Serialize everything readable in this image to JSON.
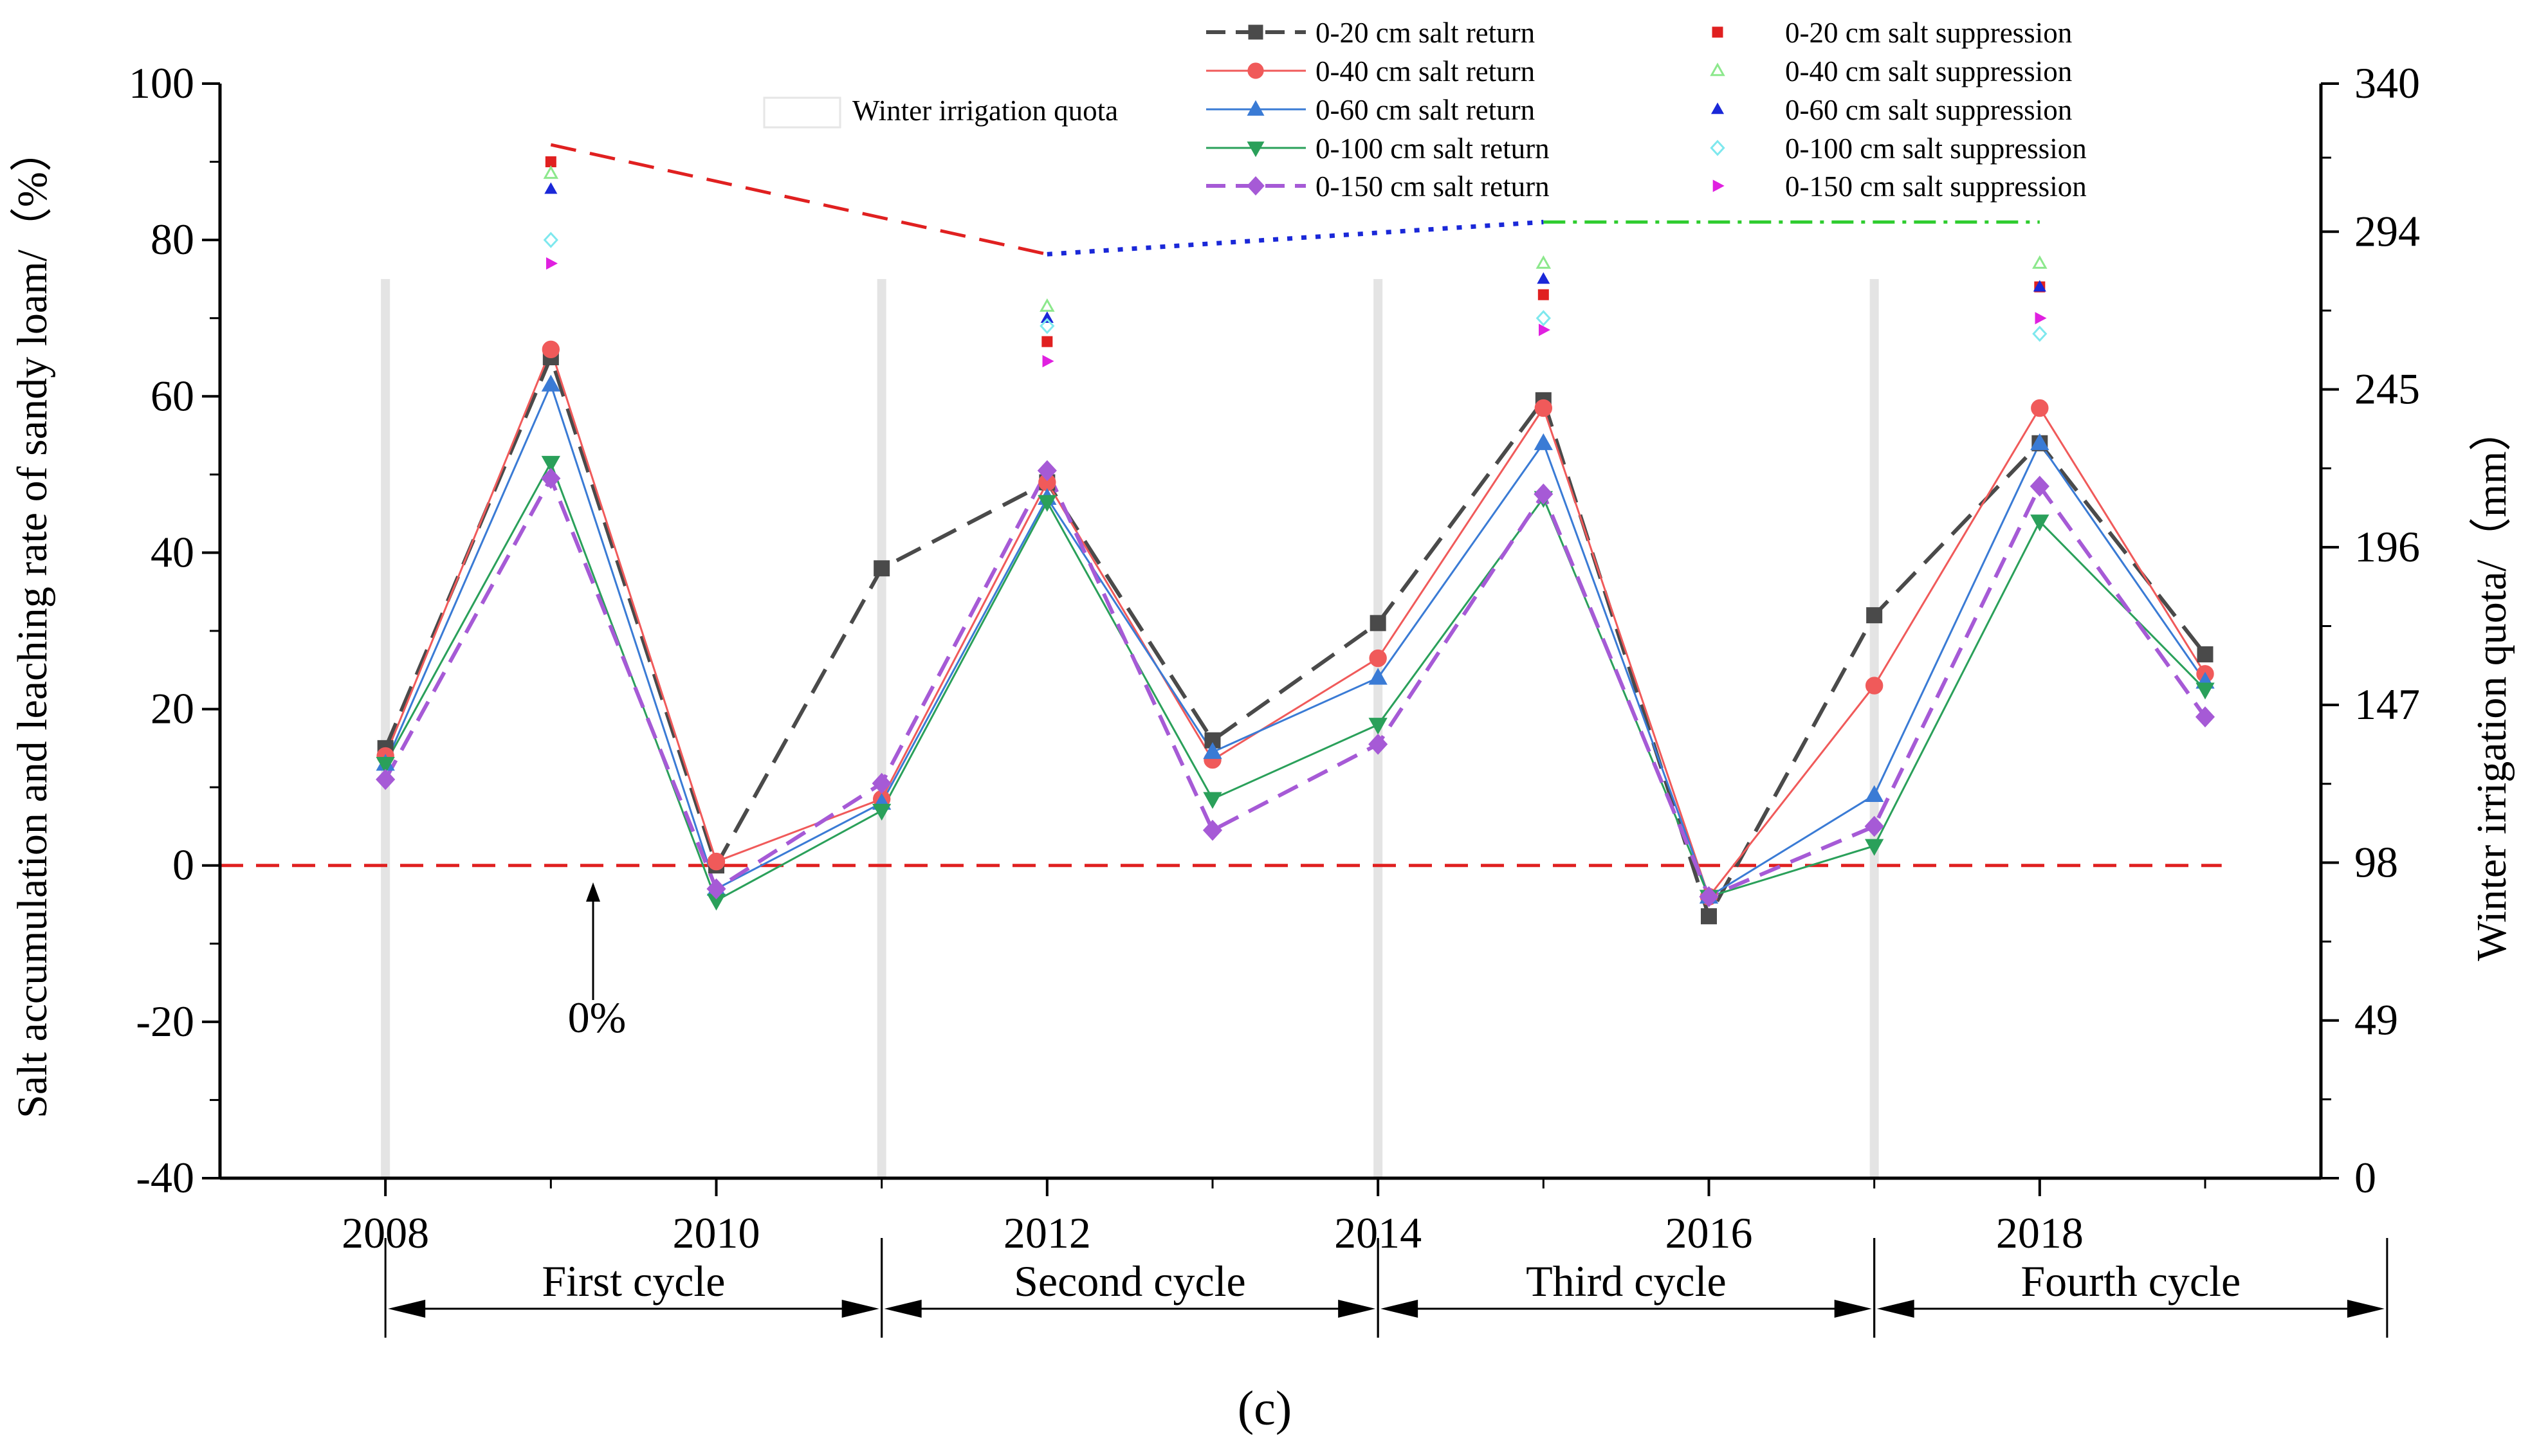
{
  "chart_data": {
    "type": "line",
    "title": "",
    "caption": "(c)",
    "x": [
      2008,
      2009,
      2010,
      2011,
      2012,
      2013,
      2014,
      2015,
      2016,
      2017,
      2018,
      2019
    ],
    "xticks": [
      "2008",
      "2010",
      "2012",
      "2014",
      "2016",
      "2018"
    ],
    "xlim": [
      2007,
      2019.7
    ],
    "ylabel": "Salt accumulation and leaching rate of sandy loam/（%）",
    "ylim": [
      -40,
      100
    ],
    "yticks": [
      "-40",
      "-20",
      "0",
      "20",
      "40",
      "60",
      "80",
      "100"
    ],
    "y2label": "Winter irrigation quota/（mm）",
    "y2lim": [
      0,
      340
    ],
    "y2ticks": [
      "0",
      "49",
      "98",
      "147",
      "196",
      "245",
      "294",
      "340"
    ],
    "zero_annotation": "0%",
    "series": [
      {
        "name": "0-20 cm salt return",
        "color": "#4a4a4a",
        "marker": "square",
        "dash": "long",
        "values": [
          15,
          65,
          0,
          38,
          49,
          16,
          31,
          59.5,
          -6.5,
          32,
          54,
          27
        ]
      },
      {
        "name": "0-40 cm salt return",
        "color": "#f05a5a",
        "marker": "circle",
        "dash": "solid",
        "values": [
          14,
          66,
          0.5,
          8.5,
          49,
          13.5,
          26.5,
          58.5,
          -4,
          23,
          58.5,
          24.5
        ]
      },
      {
        "name": "0-60 cm salt return",
        "color": "#3a7bd5",
        "marker": "triangle-up",
        "dash": "solid",
        "values": [
          13,
          61.5,
          -3,
          8,
          47,
          14.5,
          24,
          54,
          -4,
          9,
          54,
          23.5
        ]
      },
      {
        "name": "0-100 cm salt return",
        "color": "#2aa05a",
        "marker": "triangle-down",
        "dash": "solid",
        "values": [
          13,
          51.5,
          -4.5,
          7,
          46.5,
          8.5,
          18,
          47,
          -4,
          2.5,
          44,
          22.5
        ]
      },
      {
        "name": "0-150 cm salt return",
        "color": "#a65ad6",
        "marker": "diamond",
        "dash": "medium",
        "values": [
          11,
          49.5,
          -3,
          10.5,
          50.5,
          4.5,
          15.5,
          47.5,
          -4,
          5,
          48.5,
          19
        ]
      }
    ],
    "suppression_series": [
      {
        "name": "0-20 cm salt suppression",
        "color": "#e02020",
        "marker": "square",
        "points": [
          [
            2009,
            90
          ],
          [
            2012,
            67
          ],
          [
            2015,
            73
          ],
          [
            2018,
            74
          ]
        ]
      },
      {
        "name": "0-40 cm salt suppression",
        "color": "#8ce88c",
        "marker": "triangle-up",
        "points": [
          [
            2009,
            88.5
          ],
          [
            2012,
            71.5
          ],
          [
            2015,
            77
          ],
          [
            2018,
            77
          ]
        ]
      },
      {
        "name": "0-60 cm salt suppression",
        "color": "#1a28d8",
        "marker": "triangle-up",
        "points": [
          [
            2009,
            86.5
          ],
          [
            2012,
            70
          ],
          [
            2015,
            75
          ],
          [
            2018,
            74
          ]
        ]
      },
      {
        "name": "0-100 cm salt suppression",
        "color": "#7ee8ee",
        "marker": "diamond",
        "points": [
          [
            2009,
            80
          ],
          [
            2012,
            69
          ],
          [
            2015,
            70
          ],
          [
            2018,
            68
          ]
        ]
      },
      {
        "name": "0-150 cm salt suppression",
        "color": "#e020e0",
        "marker": "triangle-right",
        "points": [
          [
            2009,
            77
          ],
          [
            2012,
            64.5
          ],
          [
            2015,
            68.5
          ],
          [
            2018,
            70
          ]
        ]
      }
    ],
    "winter_irrigation_quota": {
      "name": "Winter irrigation quota",
      "unit": "mm",
      "segments": [
        {
          "x": [
            2009,
            2012
          ],
          "y_right": [
            321,
            287
          ],
          "color": "#e02020",
          "style": "dash"
        },
        {
          "x": [
            2012,
            2015
          ],
          "y_right": [
            287,
            297
          ],
          "color": "#1a28d8",
          "style": "dot"
        },
        {
          "x": [
            2015,
            2018
          ],
          "y_right": [
            297,
            297
          ],
          "color": "#2ecc2e",
          "style": "dashdot"
        }
      ]
    },
    "cycles": [
      {
        "label": "First cycle",
        "start": 2008,
        "end": 2011
      },
      {
        "label": "Second cycle",
        "start": 2011,
        "end": 2014
      },
      {
        "label": "Third cycle",
        "start": 2014,
        "end": 2017
      },
      {
        "label": "Fourth cycle",
        "start": 2017,
        "end": 2020.1
      }
    ],
    "reference_line": {
      "y": 0,
      "color": "#e02020"
    },
    "legend_position": "top-right"
  }
}
